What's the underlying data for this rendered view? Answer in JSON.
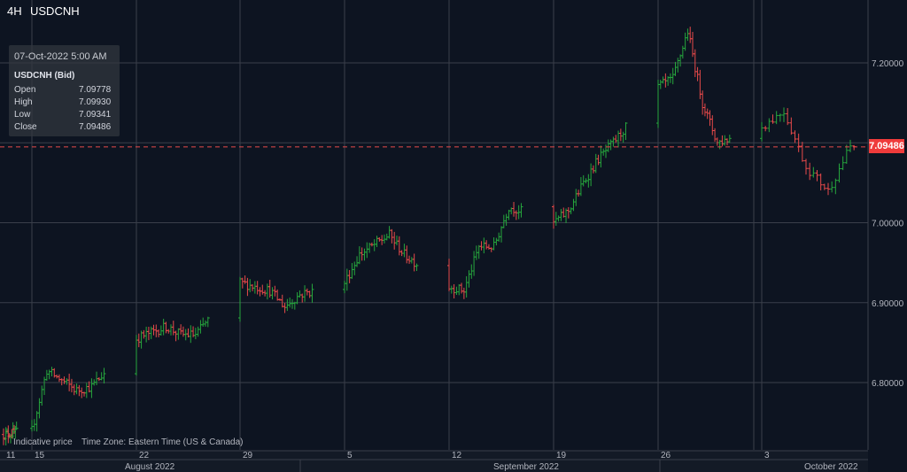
{
  "header": {
    "timeframe": "4H",
    "symbol": "USDCNH"
  },
  "ohlc_box": {
    "datetime": "07-Oct-2022 5:00 AM",
    "instrument": "USDCNH (Bid)",
    "rows": [
      {
        "label": "Open",
        "value": "7.09778"
      },
      {
        "label": "High",
        "value": "7.09930"
      },
      {
        "label": "Low",
        "value": "7.09341"
      },
      {
        "label": "Close",
        "value": "7.09486"
      }
    ]
  },
  "footer": {
    "note": "Indicative price",
    "timezone": "Time Zone: Eastern Time (US & Canada)"
  },
  "current_price": {
    "label": "7.09486",
    "value": 7.09486
  },
  "colors": {
    "background": "#0d1421",
    "grid": "#3a3f4a",
    "up": "#26a63d",
    "down": "#e84a4a",
    "price_tag": "#ef3b3b"
  },
  "chart_data": {
    "type": "ohlc",
    "y_ticks": [
      6.8,
      6.9,
      7.0,
      7.1,
      7.2
    ],
    "y_tick_labels": [
      "6.80000",
      "6.90000",
      "7.00000",
      "",
      "7.20000"
    ],
    "ylim": [
      6.71,
      7.28
    ],
    "x_day_ticks": [
      "11",
      "15",
      "22",
      "29",
      "5",
      "12",
      "19",
      "26",
      "3"
    ],
    "x_month_labels": [
      "August 2022",
      "September 2022",
      "October 2022"
    ],
    "grid": true,
    "anchors": [
      [
        "2022-08-11",
        6.735
      ],
      [
        "2022-08-15",
        6.74
      ],
      [
        "2022-08-16",
        6.815
      ],
      [
        "2022-08-18",
        6.79
      ],
      [
        "2022-08-19",
        6.795
      ],
      [
        "2022-08-22",
        6.855
      ],
      [
        "2022-08-24",
        6.87
      ],
      [
        "2022-08-25",
        6.86
      ],
      [
        "2022-08-26",
        6.86
      ],
      [
        "2022-08-29",
        6.925
      ],
      [
        "2022-08-31",
        6.915
      ],
      [
        "2022-09-01",
        6.895
      ],
      [
        "2022-09-02",
        6.91
      ],
      [
        "2022-09-05",
        6.925
      ],
      [
        "2022-09-06",
        6.96
      ],
      [
        "2022-09-08",
        6.985
      ],
      [
        "2022-09-09",
        6.96
      ],
      [
        "2022-09-12",
        6.92
      ],
      [
        "2022-09-13",
        6.915
      ],
      [
        "2022-09-14",
        6.97
      ],
      [
        "2022-09-15",
        6.97
      ],
      [
        "2022-09-16",
        7.02
      ],
      [
        "2022-09-19",
        7.0
      ],
      [
        "2022-09-20",
        7.015
      ],
      [
        "2022-09-21",
        7.05
      ],
      [
        "2022-09-22",
        7.08
      ],
      [
        "2022-09-23",
        7.1
      ],
      [
        "2022-09-26",
        7.17
      ],
      [
        "2022-09-27",
        7.18
      ],
      [
        "2022-09-28",
        7.24
      ],
      [
        "2022-09-29",
        7.15
      ],
      [
        "2022-09-30",
        7.1
      ],
      [
        "2022-10-03",
        7.12
      ],
      [
        "2022-10-04",
        7.14
      ],
      [
        "2022-10-05",
        7.07
      ],
      [
        "2022-10-06",
        7.04
      ],
      [
        "2022-10-07",
        7.095
      ]
    ]
  }
}
